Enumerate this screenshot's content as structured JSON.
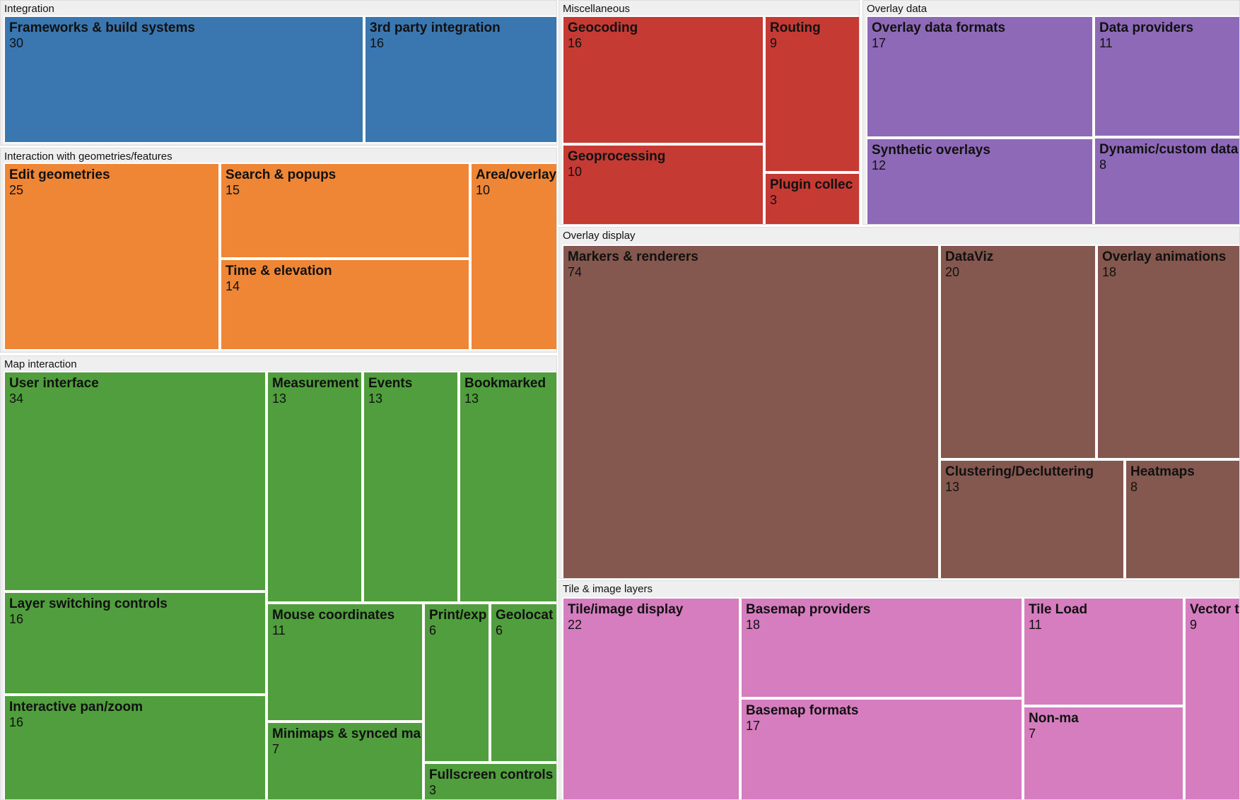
{
  "chart_data": {
    "type": "treemap",
    "groups": [
      {
        "name": "Integration",
        "color": "#3a76af",
        "children": [
          {
            "name": "Frameworks & build systems",
            "value": 30
          },
          {
            "name": "3rd party integration",
            "value": 16
          }
        ]
      },
      {
        "name": "Interaction with geometries/features",
        "color": "#ef8636",
        "children": [
          {
            "name": "Edit geometries",
            "value": 25
          },
          {
            "name": "Search & popups",
            "value": 15
          },
          {
            "name": "Time & elevation",
            "value": 14
          },
          {
            "name": "Area/overlay",
            "value": 10
          }
        ]
      },
      {
        "name": "Map interaction",
        "color": "#519e3e",
        "children": [
          {
            "name": "User interface",
            "value": 34
          },
          {
            "name": "Layer switching controls",
            "value": 16
          },
          {
            "name": "Interactive pan/zoom",
            "value": 16
          },
          {
            "name": "Measurement",
            "value": 13
          },
          {
            "name": "Events",
            "value": 13
          },
          {
            "name": "Bookmarked",
            "value": 13
          },
          {
            "name": "Mouse coordinates",
            "value": 11
          },
          {
            "name": "Minimaps & synced ma",
            "value": 7
          },
          {
            "name": "Print/exp",
            "value": 6
          },
          {
            "name": "Geolocat",
            "value": 6
          },
          {
            "name": "Fullscreen controls",
            "value": 3
          }
        ]
      },
      {
        "name": "Miscellaneous",
        "color": "#c53a32",
        "children": [
          {
            "name": "Geocoding",
            "value": 16
          },
          {
            "name": "Routing",
            "value": 9
          },
          {
            "name": "Geoprocessing",
            "value": 10
          },
          {
            "name": "Plugin collec",
            "value": 3
          }
        ]
      },
      {
        "name": "Overlay data",
        "color": "#8d69b8",
        "children": [
          {
            "name": "Overlay data formats",
            "value": 17
          },
          {
            "name": "Data providers",
            "value": 11
          },
          {
            "name": "Synthetic overlays",
            "value": 12
          },
          {
            "name": "Dynamic/custom data",
            "value": 8
          }
        ]
      },
      {
        "name": "Overlay display",
        "color": "#84584e",
        "children": [
          {
            "name": "Markers & renderers",
            "value": 74
          },
          {
            "name": "DataViz",
            "value": 20
          },
          {
            "name": "Overlay animations",
            "value": 18
          },
          {
            "name": "Clustering/Decluttering",
            "value": 13
          },
          {
            "name": "Heatmaps",
            "value": 8
          }
        ]
      },
      {
        "name": "Tile & image layers",
        "color": "#d57dbe",
        "children": [
          {
            "name": "Tile/image display",
            "value": 22
          },
          {
            "name": "Basemap providers",
            "value": 18
          },
          {
            "name": "Basemap formats",
            "value": 17
          },
          {
            "name": "Tile Load",
            "value": 11
          },
          {
            "name": "Vector tiles",
            "value": 9
          },
          {
            "name": "Non-ma",
            "value": 7
          }
        ]
      }
    ]
  }
}
